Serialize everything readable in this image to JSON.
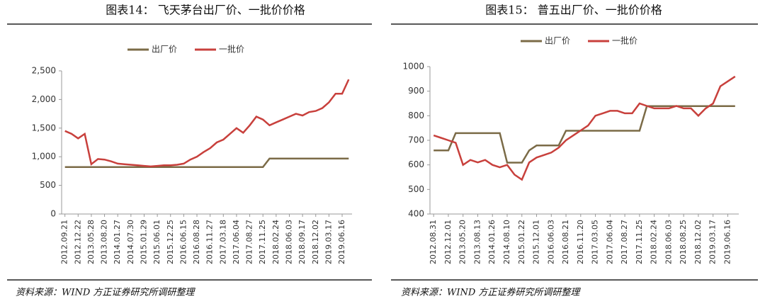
{
  "chart_data": [
    {
      "type": "line",
      "title": "图表14：  飞天茅台出厂价、一批价价格",
      "source": "资料来源：WIND 方正证券研究所调研整理",
      "categories": [
        "2012.09.21",
        null,
        "2012.12.22",
        null,
        "2013.05.28",
        null,
        "2013.08.20",
        null,
        "2014.01.27",
        null,
        "2014.07.30",
        null,
        "2015.01.29",
        null,
        "2015.06.01",
        null,
        "2015.12.25",
        null,
        "2016.06.15",
        null,
        "2016.08.28",
        null,
        "2016.11.27",
        null,
        "2017.03.18",
        null,
        "2017.06.04",
        null,
        "2017.08.27",
        null,
        "2017.11.25",
        null,
        "2018.02.24",
        null,
        "2018.06.03",
        null,
        "2018.09.17",
        null,
        "2018.12.02",
        null,
        "2019.03.17",
        null,
        "2019.06.16",
        null
      ],
      "series": [
        {
          "name": "出厂价",
          "color": "#7b6b47",
          "values": [
            819,
            819,
            819,
            819,
            819,
            819,
            819,
            819,
            819,
            819,
            819,
            819,
            819,
            819,
            819,
            819,
            819,
            819,
            819,
            819,
            819,
            819,
            819,
            819,
            819,
            819,
            819,
            819,
            819,
            819,
            819,
            969,
            969,
            969,
            969,
            969,
            969,
            969,
            969,
            969,
            969,
            969,
            969,
            969
          ]
        },
        {
          "name": "一批价",
          "color": "#c8403c",
          "values": [
            1450,
            1400,
            1320,
            1400,
            870,
            960,
            950,
            920,
            880,
            870,
            860,
            850,
            840,
            830,
            840,
            850,
            850,
            860,
            880,
            950,
            1000,
            1080,
            1150,
            1250,
            1300,
            1400,
            1500,
            1420,
            1550,
            1700,
            1650,
            1550,
            1600,
            1650,
            1700,
            1750,
            1720,
            1780,
            1800,
            1850,
            1950,
            2100,
            2100,
            2350
          ]
        }
      ],
      "ylim": [
        0,
        2500
      ],
      "yticks": [
        0,
        500,
        {
          "value": 1000,
          "label": "1,000"
        },
        {
          "value": 1500,
          "label": "1,500"
        },
        {
          "value": 2000,
          "label": "2,000"
        },
        {
          "value": 2500,
          "label": "2,500"
        }
      ]
    },
    {
      "type": "line",
      "title": "图表15：  普五出厂价、一批价价格",
      "source": "资料来源：WIND 方正证券研究所调研整理",
      "categories": [
        "2012.08.31",
        null,
        "2012.12.01",
        null,
        "2013.05.20",
        null,
        "2013.08.13",
        null,
        "2014.01.26",
        null,
        "2014.08.10",
        null,
        "2015.01.22",
        null,
        "2015.12.01",
        null,
        "2016.06.03",
        null,
        "2016.08.21",
        null,
        "2016.11.20",
        null,
        "2017.03.05",
        null,
        "2017.06.04",
        null,
        "2017.08.27",
        null,
        "2017.11.25",
        null,
        "2018.02.24",
        null,
        "2018.06.03",
        null,
        "2018.08.25",
        null,
        "2018.12.02",
        null,
        "2019.03.17",
        null,
        "2019.06.16",
        null
      ],
      "series": [
        {
          "name": "出厂价",
          "color": "#7b6b47",
          "values": [
            659,
            659,
            659,
            729,
            729,
            729,
            729,
            729,
            729,
            729,
            609,
            609,
            609,
            659,
            679,
            679,
            679,
            679,
            739,
            739,
            739,
            739,
            739,
            739,
            739,
            739,
            739,
            739,
            739,
            839,
            839,
            839,
            839,
            839,
            839,
            839,
            839,
            839,
            839,
            839,
            839,
            839
          ]
        },
        {
          "name": "一批价",
          "color": "#c8403c",
          "values": [
            720,
            710,
            700,
            690,
            600,
            620,
            610,
            620,
            600,
            590,
            600,
            560,
            540,
            610,
            630,
            640,
            650,
            670,
            700,
            720,
            740,
            760,
            800,
            810,
            820,
            820,
            810,
            810,
            850,
            840,
            830,
            830,
            830,
            840,
            830,
            830,
            800,
            830,
            850,
            920,
            940,
            960
          ]
        }
      ],
      "ylim": [
        400,
        1000
      ],
      "yticks": [
        400,
        500,
        600,
        700,
        800,
        900,
        1000
      ]
    }
  ]
}
